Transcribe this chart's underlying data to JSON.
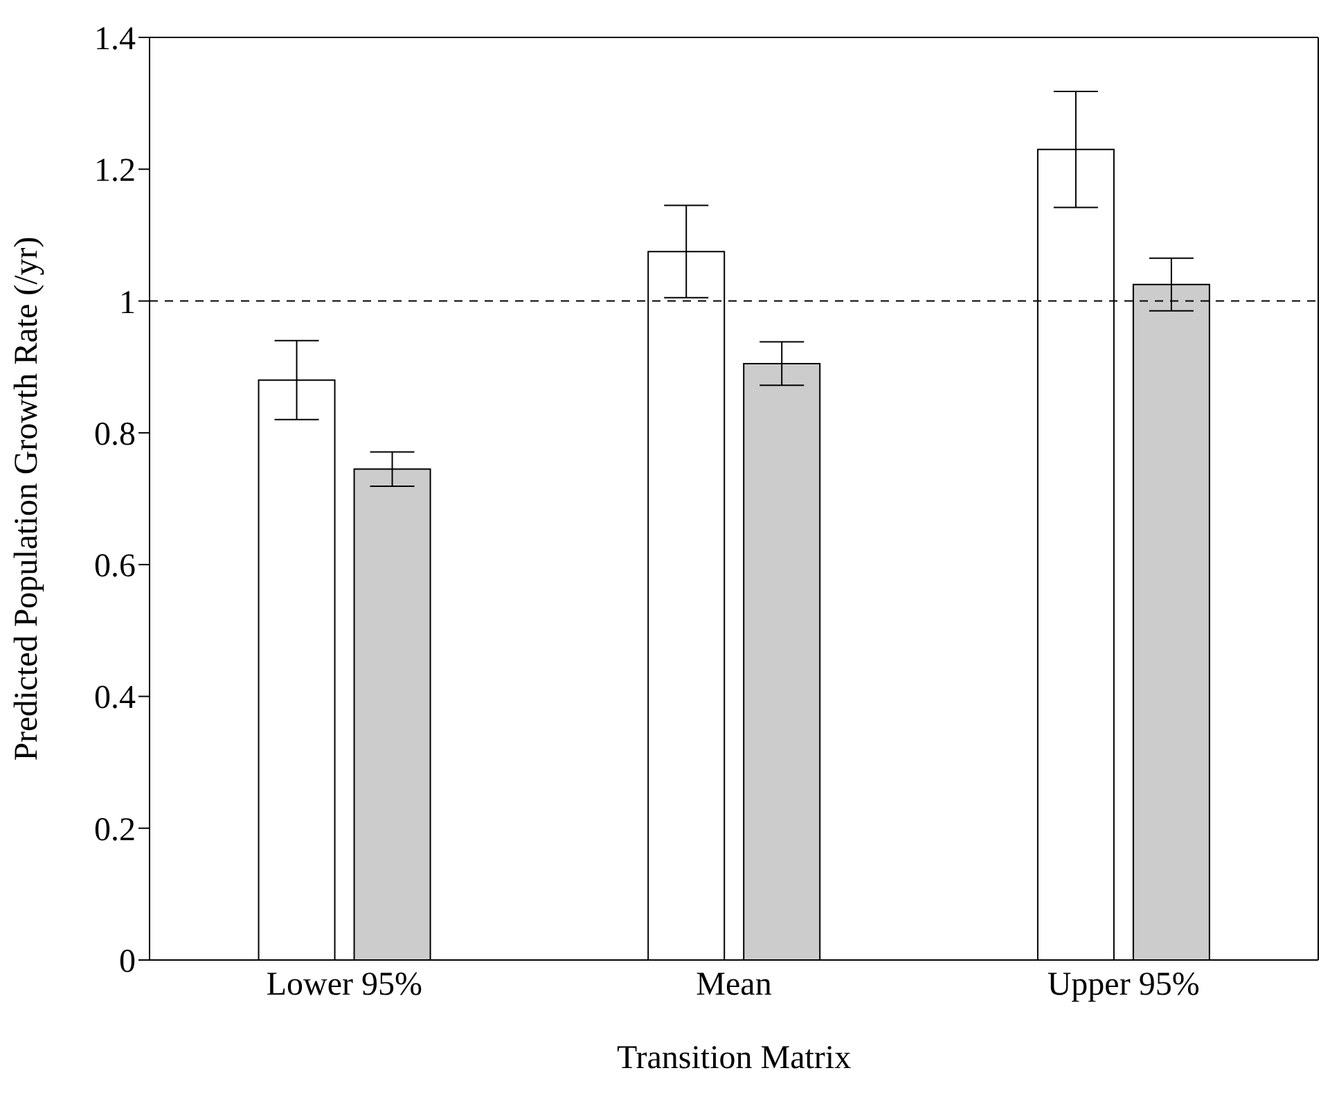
{
  "chart_data": {
    "type": "bar",
    "xlabel": "Transition Matrix",
    "ylabel": "Predicted Population Growth Rate (/yr)",
    "categories": [
      "Lower 95%",
      "Mean",
      "Upper 95%"
    ],
    "series": [
      {
        "color": "#ffffff",
        "values": [
          0.88,
          1.075,
          1.23
        ],
        "errors": [
          0.06,
          0.07,
          0.088
        ]
      },
      {
        "color": "#cccccc",
        "values": [
          0.745,
          0.905,
          1.025
        ],
        "errors": [
          0.026,
          0.033,
          0.04
        ]
      }
    ],
    "ylim": [
      0,
      1.4
    ],
    "yticks": [
      0,
      {
        "value": 0.2,
        "label": "0.2"
      },
      {
        "value": 0.4,
        "label": "0.4"
      },
      {
        "value": 0.6,
        "label": "0.6"
      },
      {
        "value": 0.8,
        "label": "0.8"
      },
      1,
      {
        "value": 1.2,
        "label": "1.2"
      },
      {
        "value": 1.4,
        "label": "1.4"
      }
    ],
    "ref_lines": [
      {
        "axis": "y",
        "value": 1,
        "line_style": "dashed",
        "color": "#000000"
      }
    ],
    "grid": false,
    "legend": false
  }
}
